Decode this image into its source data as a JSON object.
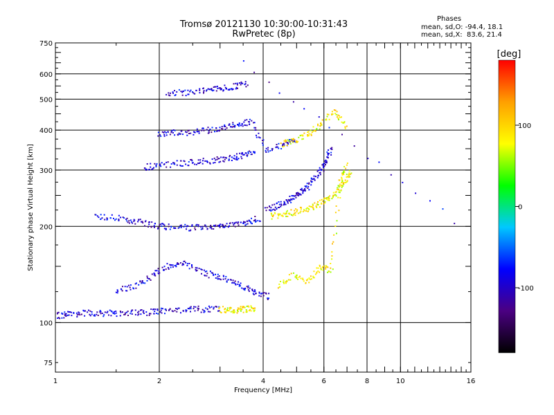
{
  "title": {
    "line1": "Tromsø 20121130 10:30:00-10:31:43",
    "line2": "RwPretec (8p)"
  },
  "phase_summary": {
    "title": "Phases",
    "o_line": "mean, sd,O: -94.4, 18.1",
    "x_line": "mean, sd,X:  83.6, 21.4"
  },
  "chart_data": {
    "type": "scatter",
    "xlabel": "Frequency [MHz]",
    "ylabel": "Stationary phase Virtual Height [km]",
    "x_scale": "log",
    "y_scale": "log",
    "xlim": [
      1,
      16
    ],
    "ylim": [
      70,
      750
    ],
    "x_ticks": [
      1,
      2,
      4,
      6,
      8,
      10,
      16
    ],
    "y_ticks": [
      75,
      100,
      200,
      300,
      400,
      500,
      600,
      750
    ],
    "x_grid": [
      2,
      4,
      6,
      8,
      10
    ],
    "y_grid": [
      100,
      200,
      300,
      400,
      500,
      600
    ],
    "colorbar": {
      "label": "[deg]",
      "range": [
        -180,
        180
      ],
      "ticks": [
        100,
        0,
        -100
      ],
      "colors": [
        "#000000",
        "#4b0082",
        "#0000ff",
        "#00c8ff",
        "#00ff00",
        "#ffff00",
        "#ffa000",
        "#ff0000"
      ]
    },
    "series": [
      {
        "id": "o-mode",
        "phase_deg": -95,
        "segments": [
          {
            "x": [
              1.0,
              1.08,
              1.2,
              1.35,
              1.5,
              1.7,
              1.9,
              2.1,
              2.4,
              2.7,
              3.0
            ],
            "y": [
              105,
              106,
              107,
              107,
              107,
              107,
              108,
              109,
              110,
              110,
              111
            ]
          },
          {
            "x": [
              1.3,
              1.5,
              1.7,
              1.9,
              2.1,
              2.4,
              2.7,
              3.0,
              3.3,
              3.6,
              3.9
            ],
            "y": [
              215,
              213,
              208,
              202,
              199,
              198,
              199,
              200,
              203,
              207,
              212
            ]
          },
          {
            "x": [
              4.1,
              4.4,
              4.7,
              5.0,
              5.3,
              5.6,
              5.9,
              6.1,
              6.3
            ],
            "y": [
              225,
              232,
              240,
              250,
              262,
              278,
              300,
              325,
              350
            ]
          },
          {
            "x": [
              1.8,
              2.0,
              2.3,
              2.6,
              2.9,
              3.2,
              3.5,
              3.8
            ],
            "y": [
              305,
              310,
              315,
              318,
              322,
              328,
              333,
              340
            ]
          },
          {
            "x": [
              2.0,
              2.2,
              2.5,
              2.8,
              3.1,
              3.4,
              3.7,
              4.1,
              4.6,
              5.0
            ],
            "y": [
              390,
              392,
              395,
              400,
              408,
              418,
              425,
              345,
              360,
              375
            ]
          },
          {
            "x": [
              2.1,
              2.4,
              2.7,
              3.0,
              3.3,
              3.6
            ],
            "y": [
              520,
              525,
              530,
              540,
              548,
              560
            ]
          },
          {
            "x": [
              1.5,
              1.7,
              1.9,
              2.1,
              2.3,
              2.6,
              2.9,
              3.2,
              3.5,
              3.8,
              4.2
            ],
            "y": [
              125,
              130,
              140,
              150,
              155,
              145,
              140,
              135,
              130,
              125,
              120
            ]
          },
          {
            "x": [
              3.5,
              15.5
            ],
            "y": [
              650,
              195
            ]
          }
        ]
      },
      {
        "id": "x-mode",
        "phase_deg": 84,
        "segments": [
          {
            "x": [
              3.0,
              3.2,
              3.4,
              3.6,
              3.8
            ],
            "y": [
              110,
              109,
              110,
              110,
              111
            ]
          },
          {
            "x": [
              4.2,
              4.6,
              5.0,
              5.4,
              5.8,
              6.2,
              6.6,
              6.9,
              7.2
            ],
            "y": [
              215,
              218,
              222,
              228,
              235,
              245,
              260,
              275,
              295
            ]
          },
          {
            "x": [
              4.4,
              4.9,
              5.4,
              5.9,
              6.3,
              6.7,
              7.0
            ],
            "y": [
              130,
              140,
              135,
              150,
              145,
              280,
              310
            ]
          },
          {
            "x": [
              4.5,
              5.0,
              5.5,
              5.9,
              6.5,
              7.0
            ],
            "y": [
              360,
              375,
              390,
              420,
              460,
              400
            ]
          }
        ]
      }
    ]
  }
}
